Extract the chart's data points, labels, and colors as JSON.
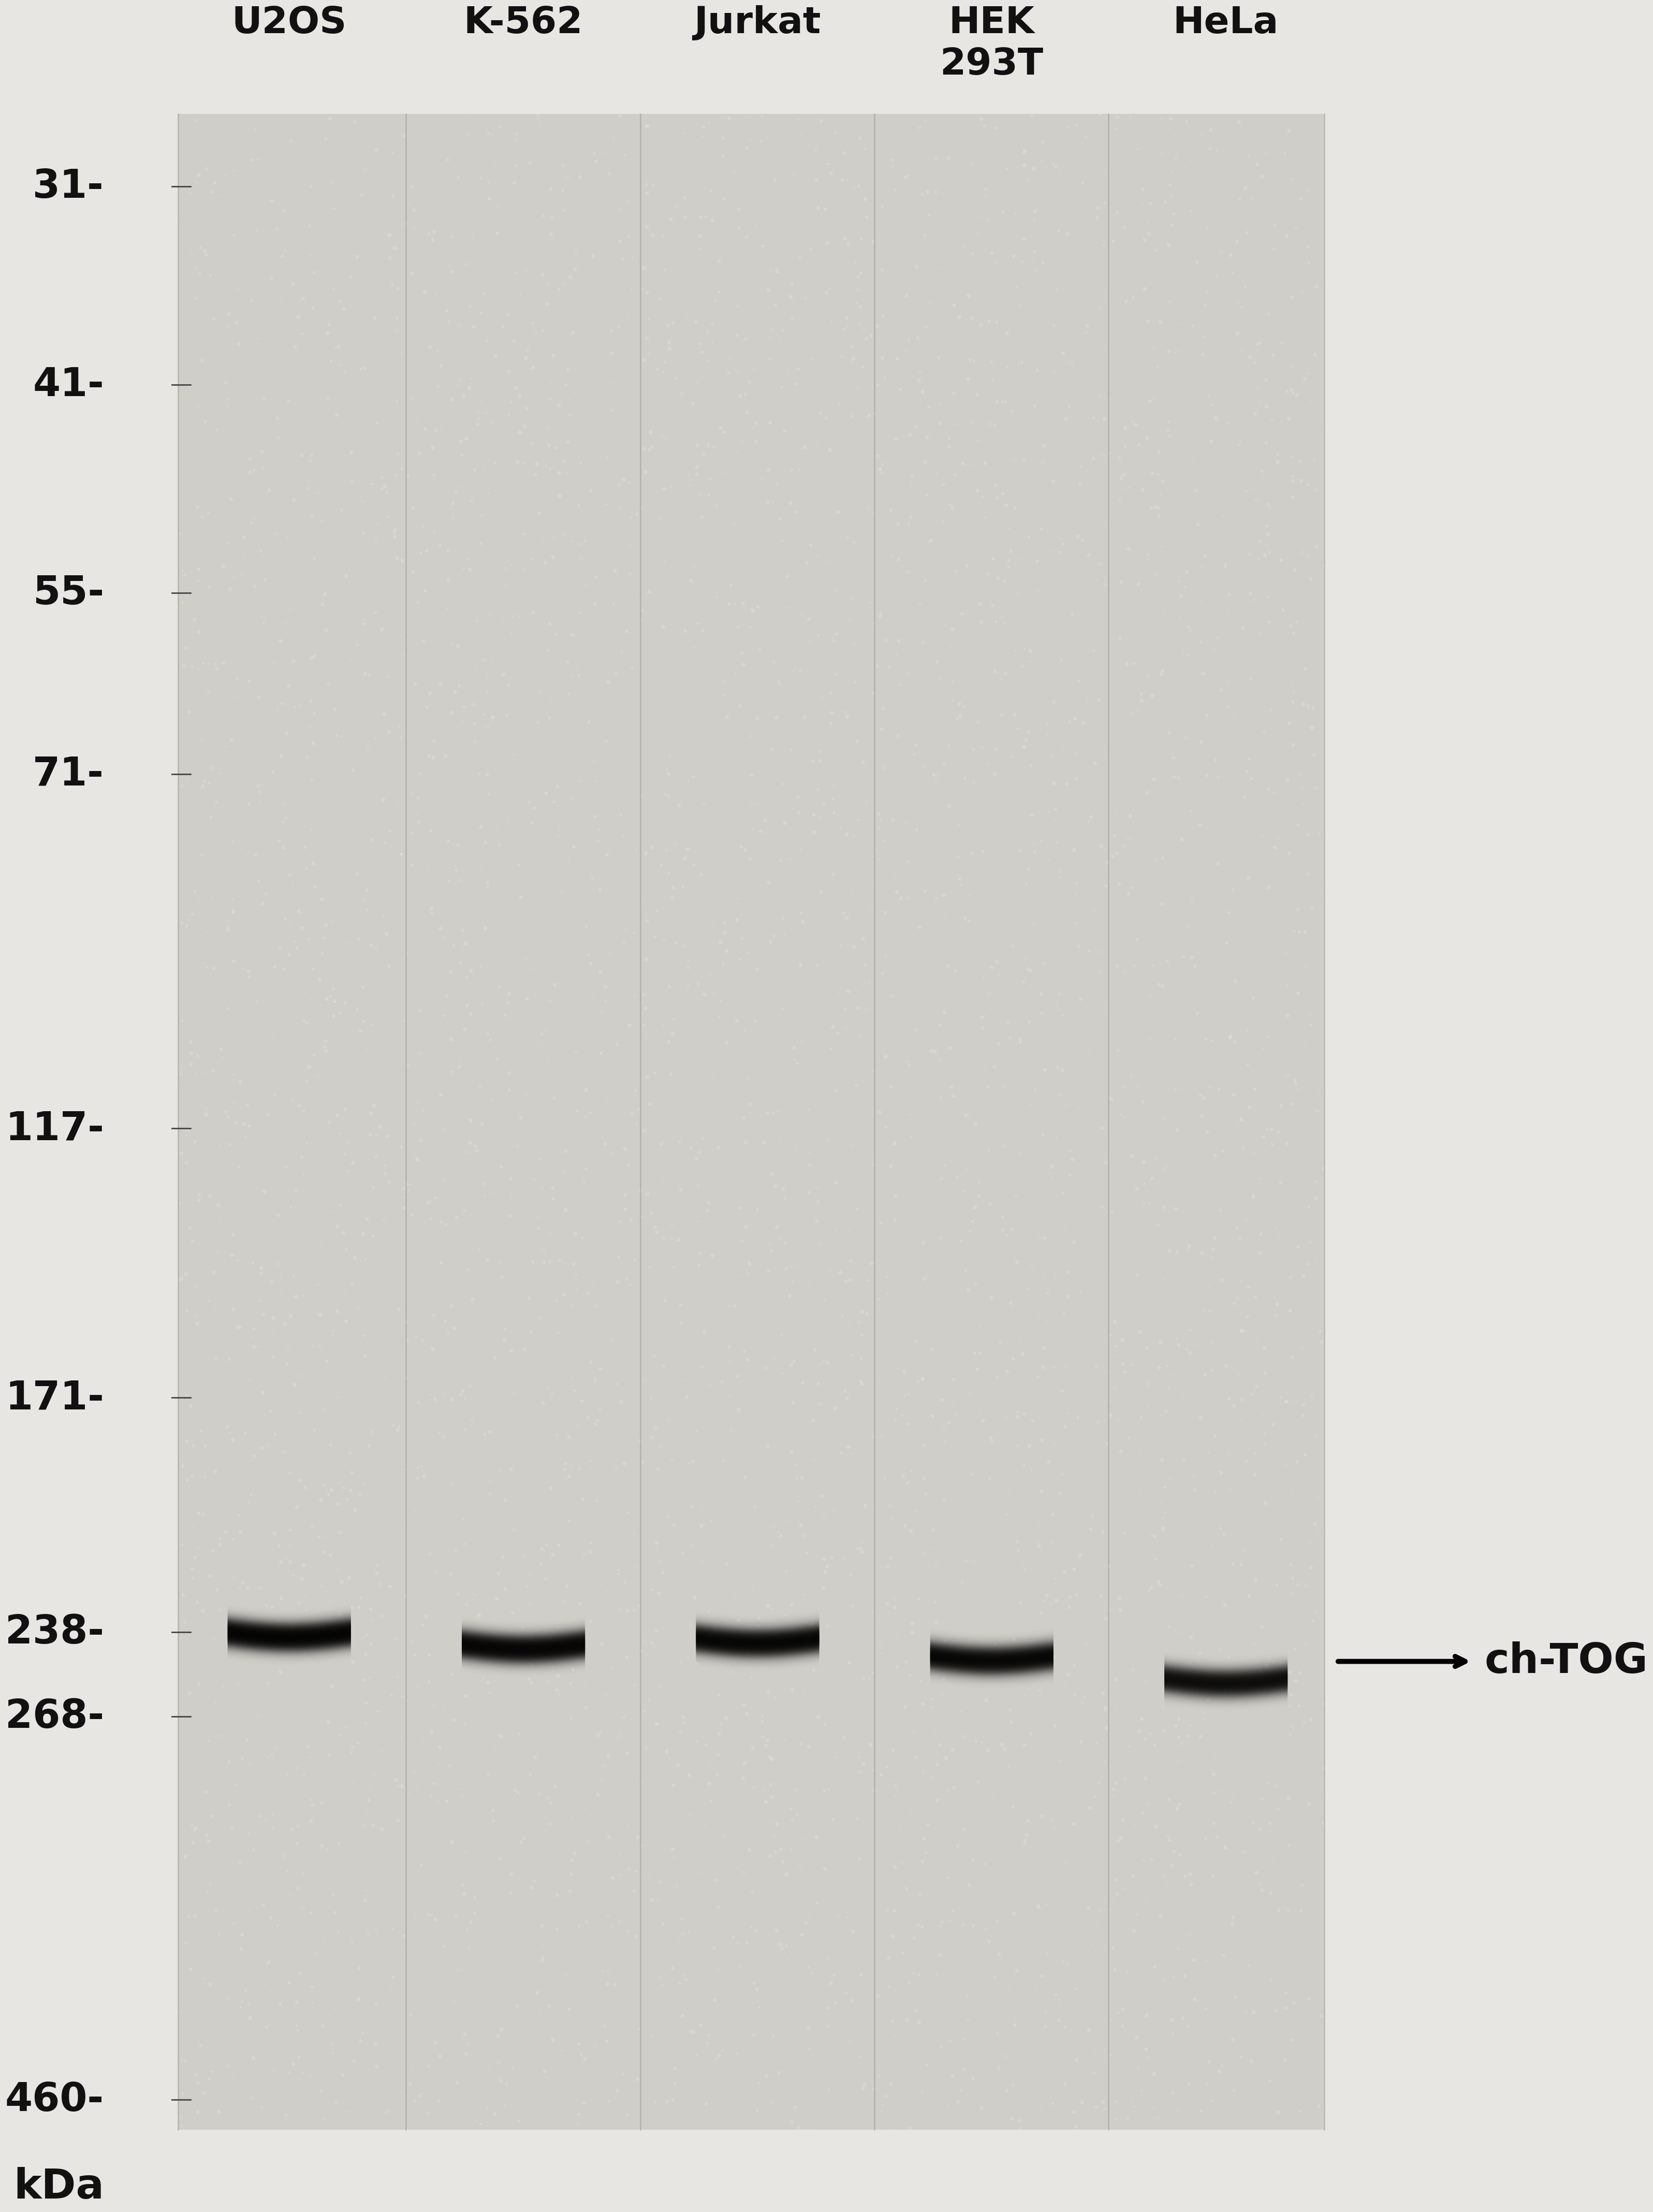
{
  "fig_width": 38.4,
  "fig_height": 49.42,
  "bg_color": "#e8e6e2",
  "blot_bg": "#c8c6c2",
  "marker_labels": [
    "460",
    "268",
    "238",
    "171",
    "117",
    "71",
    "55",
    "41",
    "31"
  ],
  "marker_kda_values": [
    460,
    268,
    238,
    171,
    117,
    71,
    55,
    41,
    31
  ],
  "lane_labels": [
    "U2OS",
    "K-562",
    "Jurkat",
    "HEK\n293T",
    "HeLa"
  ],
  "band_kda": 238,
  "band_intensity": [
    0.88,
    0.84,
    0.82,
    0.8,
    0.7
  ],
  "band_y_offsets": [
    0,
    4,
    2,
    8,
    16
  ],
  "annotation_text": "ch-TOG",
  "kda_label": "kDa"
}
